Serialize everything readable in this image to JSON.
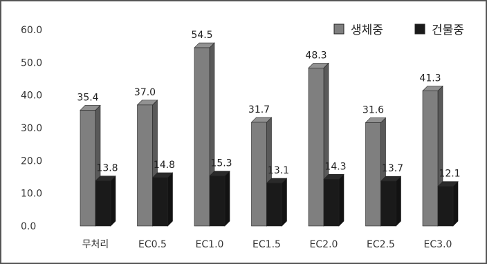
{
  "chart_data": {
    "type": "bar",
    "categories": [
      "무처리",
      "EC0.5",
      "EC1.0",
      "EC1.5",
      "EC2.0",
      "EC2.5",
      "EC3.0"
    ],
    "series": [
      {
        "name": "생체중",
        "values": [
          35.4,
          37.0,
          54.5,
          31.7,
          48.3,
          31.6,
          41.3
        ],
        "value_labels": [
          "35.4",
          "37.0",
          "54.5",
          "31.7",
          "48.3",
          "31.6",
          "41.3"
        ],
        "color": "#7f7f7f"
      },
      {
        "name": "건물중",
        "values": [
          13.8,
          14.8,
          15.3,
          13.1,
          14.3,
          13.7,
          12.1
        ],
        "value_labels": [
          "13.8",
          "14.8",
          "15.3",
          "13.1",
          "14.3",
          "13.7",
          "12.1"
        ],
        "color": "#1a1a1a"
      }
    ],
    "yticks": [
      "0.0",
      "10.0",
      "20.0",
      "30.0",
      "40.0",
      "50.0",
      "60.0"
    ],
    "ylim": [
      0,
      60
    ],
    "grid": false,
    "legend_position": "top-right",
    "style": "3d-bar"
  }
}
